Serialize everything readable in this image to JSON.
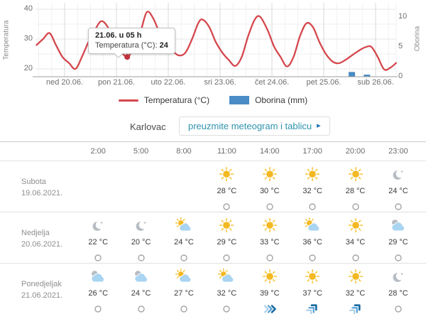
{
  "chart": {
    "y_left_title": "Temperatura",
    "y_right_title": "Oborina",
    "tooltip": {
      "title": "21.06. u 05 h",
      "label": "Temperatura (°C):",
      "value": "24"
    },
    "colors": {
      "line": "#d5474d",
      "bar": "#4a8cc5",
      "dot": "#c2343c"
    }
  },
  "chart_data": {
    "type": "line+bar",
    "x_unit": "hours from 19.06.2021. 00:00",
    "x_day_labels": [
      "ned 20.06.",
      "pon 21.06.",
      "uto 22.06.",
      "sri 23.06.",
      "čet 24.06.",
      "pet 25.06.",
      "sub 26.06."
    ],
    "y_left": {
      "label": "Temperatura",
      "ticks": [
        40,
        30,
        20
      ],
      "range": [
        17.4,
        42.1
      ]
    },
    "y_right": {
      "label": "Oborina",
      "ticks": [
        10,
        5,
        0
      ],
      "range": [
        0,
        12.4
      ]
    },
    "grid": true,
    "legend_position": "bottom",
    "series": [
      {
        "name": "Temperatura (°C)",
        "type": "line",
        "axis": "left",
        "color": "#d5474d",
        "points": [
          [
            11,
            28
          ],
          [
            14,
            30
          ],
          [
            17,
            32
          ],
          [
            20,
            28
          ],
          [
            23,
            24
          ],
          [
            26,
            22
          ],
          [
            29,
            20
          ],
          [
            32,
            24
          ],
          [
            35,
            29
          ],
          [
            38,
            33
          ],
          [
            41,
            36
          ],
          [
            44,
            34
          ],
          [
            47,
            29
          ],
          [
            50,
            26
          ],
          [
            53,
            24
          ],
          [
            56,
            27
          ],
          [
            59,
            32
          ],
          [
            62,
            39
          ],
          [
            65,
            37
          ],
          [
            68,
            32
          ],
          [
            71,
            28
          ],
          [
            74,
            26
          ],
          [
            77,
            24.5
          ],
          [
            80,
            25.5
          ],
          [
            83,
            30
          ],
          [
            86,
            35.5
          ],
          [
            88,
            36.5
          ],
          [
            91,
            34
          ],
          [
            94,
            29
          ],
          [
            97,
            25.5
          ],
          [
            100,
            23
          ],
          [
            103,
            21
          ],
          [
            106,
            24
          ],
          [
            109,
            31
          ],
          [
            112,
            36.5
          ],
          [
            114.5,
            37.5
          ],
          [
            118,
            33
          ],
          [
            121,
            27.5
          ],
          [
            124,
            24
          ],
          [
            127,
            20.8
          ],
          [
            130,
            24
          ],
          [
            133,
            31
          ],
          [
            136,
            35.3
          ],
          [
            139,
            34
          ],
          [
            142,
            29
          ],
          [
            145,
            25
          ],
          [
            148,
            22.5
          ],
          [
            151,
            21.9
          ],
          [
            154,
            23
          ],
          [
            157,
            24.5
          ],
          [
            160,
            26
          ],
          [
            163,
            27.2
          ],
          [
            166,
            27.4
          ],
          [
            169,
            24
          ],
          [
            172,
            19.8
          ],
          [
            175,
            20.5
          ],
          [
            177.5,
            22
          ]
        ]
      },
      {
        "name": "Oborina (mm)",
        "type": "bar",
        "axis": "right",
        "color": "#4a8cc5",
        "points": [
          [
            157,
            0.8
          ],
          [
            164,
            0.35
          ]
        ]
      }
    ],
    "highlight_point": {
      "series": "Temperatura (°C)",
      "x": 53,
      "value": 24,
      "label": "21.06. u 05 h"
    }
  },
  "location": {
    "name": "Karlovac",
    "button_label": "preuzmite meteogram i tablicu",
    "button_arrow": "▸"
  },
  "table": {
    "times": [
      "2:00",
      "5:00",
      "8:00",
      "11:00",
      "14:00",
      "17:00",
      "20:00",
      "23:00"
    ],
    "rows": [
      {
        "day": "Subota",
        "date": "19.06.2021.",
        "cells": [
          {
            "icon": null,
            "temp": null,
            "wind": null
          },
          {
            "icon": null,
            "temp": null,
            "wind": null
          },
          {
            "icon": null,
            "temp": null,
            "wind": null
          },
          {
            "icon": "sun",
            "temp": "28 °C",
            "wind": "calm"
          },
          {
            "icon": "sun",
            "temp": "30 °C",
            "wind": "calm"
          },
          {
            "icon": "sun",
            "temp": "32 °C",
            "wind": "calm"
          },
          {
            "icon": "sun",
            "temp": "28 °C",
            "wind": "calm"
          },
          {
            "icon": "moon",
            "temp": "24 °C",
            "wind": "calm"
          }
        ]
      },
      {
        "day": "Nedjelja",
        "date": "20.06.2021.",
        "cells": [
          {
            "icon": "moon",
            "temp": "22 °C",
            "wind": "calm"
          },
          {
            "icon": "moon",
            "temp": "20 °C",
            "wind": "calm"
          },
          {
            "icon": "sun-cloud",
            "temp": "24 °C",
            "wind": "calm"
          },
          {
            "icon": "sun",
            "temp": "29 °C",
            "wind": "calm"
          },
          {
            "icon": "sun",
            "temp": "33 °C",
            "wind": "calm"
          },
          {
            "icon": "sun-cloud",
            "temp": "36 °C",
            "wind": "calm"
          },
          {
            "icon": "sun",
            "temp": "34 °C",
            "wind": "calm"
          },
          {
            "icon": "cloud-moon",
            "temp": "29 °C",
            "wind": "calm"
          }
        ]
      },
      {
        "day": "Ponedjeljak",
        "date": "21.06.2021.",
        "cells": [
          {
            "icon": "cloud-moon",
            "temp": "26 °C",
            "wind": "calm"
          },
          {
            "icon": "cloud-moon",
            "temp": "24 °C",
            "wind": "calm"
          },
          {
            "icon": "sun-cloud",
            "temp": "27 °C",
            "wind": "calm"
          },
          {
            "icon": "sun-cloud",
            "temp": "32 °C",
            "wind": "calm"
          },
          {
            "icon": "sun",
            "temp": "39 °C",
            "wind": "chevrons-e"
          },
          {
            "icon": "sun",
            "temp": "37 °C",
            "wind": "chevrons-ne"
          },
          {
            "icon": "sun",
            "temp": "32 °C",
            "wind": "chevrons-ne"
          },
          {
            "icon": "moon",
            "temp": "28 °C",
            "wind": "calm"
          }
        ]
      }
    ]
  }
}
